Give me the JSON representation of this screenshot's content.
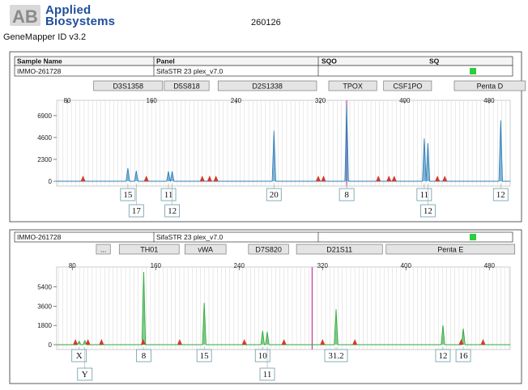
{
  "header": {
    "brand_line1": "Applied",
    "brand_line2": "Biosystems",
    "product": "GeneMapper ID v3.2",
    "run_id": "260126"
  },
  "table": {
    "col_sample": "Sample Name",
    "col_panel": "Panel",
    "col_sqo": "SQO",
    "col_sq": "SQ",
    "sample_name": "IMMO-261728",
    "panel": "SifaSTR 23 plex_v7.0",
    "quality_color": "#2ecc40"
  },
  "panel2": {
    "sample_name": "IMMO-261728",
    "panel": "SifaSTR 23 plex_v7.0",
    "quality_color": "#2ecc40"
  },
  "colors": {
    "blue_trace": "#2d7fb8",
    "green_trace": "#2eaa3a",
    "pink_line": "#d63fa6",
    "peak_marker": "#d8382a",
    "marker_box": "#e4e4e4",
    "gridline": "#c4c4c4"
  },
  "chart_data": [
    {
      "type": "line",
      "series": [
        {
          "color": "#2d7fb8"
        }
      ],
      "x_ticks": [
        80,
        160,
        240,
        320,
        400,
        480
      ],
      "y_ticks": [
        0,
        2300,
        4600,
        6900
      ],
      "xlim": [
        70,
        500
      ],
      "ylim": [
        0,
        8000
      ],
      "markers": [
        {
          "label": "D3S1358",
          "x0": 105,
          "x1": 172
        },
        {
          "label": "D5S818",
          "x0": 172,
          "x1": 216
        },
        {
          "label": "D2S1338",
          "x0": 223,
          "x1": 318
        },
        {
          "label": "TPOX",
          "x0": 328,
          "x1": 375
        },
        {
          "label": "CSF1PO",
          "x0": 380,
          "x1": 427
        },
        {
          "label": "Penta D",
          "x0": 447,
          "x1": 516
        }
      ],
      "peaks": [
        {
          "x": 137.5,
          "height": 1380
        },
        {
          "x": 145.5,
          "height": 1100
        },
        {
          "x": 176.0,
          "height": 1050
        },
        {
          "x": 179.5,
          "height": 1050
        },
        {
          "x": 276.0,
          "height": 5300
        },
        {
          "x": 345.0,
          "height": 8000
        },
        {
          "x": 418.5,
          "height": 4500
        },
        {
          "x": 422.0,
          "height": 4000
        },
        {
          "x": 491.0,
          "height": 6400
        }
      ],
      "red_markers_x": [
        95,
        155,
        208,
        215,
        221,
        318,
        323,
        375,
        385,
        390,
        431,
        438
      ],
      "pink_line_x": 345,
      "alleles": [
        {
          "label": "15",
          "x": 137.5,
          "row": 1
        },
        {
          "label": "17",
          "x": 145.5,
          "row": 2
        },
        {
          "label": "11",
          "x": 176.0,
          "row": 1
        },
        {
          "label": "12",
          "x": 179.5,
          "row": 2
        },
        {
          "label": "20",
          "x": 276.0,
          "row": 1
        },
        {
          "label": "8",
          "x": 345.0,
          "row": 1
        },
        {
          "label": "11",
          "x": 418.5,
          "row": 1
        },
        {
          "label": "12",
          "x": 422.0,
          "row": 2
        },
        {
          "label": "12",
          "x": 491.0,
          "row": 1
        }
      ]
    },
    {
      "type": "line",
      "series": [
        {
          "color": "#2eaa3a"
        }
      ],
      "x_ticks": [
        80,
        160,
        240,
        320,
        400,
        480
      ],
      "y_ticks": [
        0,
        1800,
        3600,
        5400
      ],
      "xlim": [
        65,
        500
      ],
      "ylim": [
        0,
        6800
      ],
      "markers": [
        {
          "label": "...",
          "x0": 103,
          "x1": 118
        },
        {
          "label": "TH01",
          "x0": 125,
          "x1": 184
        },
        {
          "label": "vWA",
          "x0": 188,
          "x1": 229
        },
        {
          "label": "D7S820",
          "x0": 249,
          "x1": 289
        },
        {
          "label": "D21S11",
          "x0": 295,
          "x1": 379
        },
        {
          "label": "Penta E",
          "x0": 381,
          "x1": 506
        }
      ],
      "peaks": [
        {
          "x": 86.5,
          "height": 320
        },
        {
          "x": 92.0,
          "height": 380
        },
        {
          "x": 148.5,
          "height": 6800
        },
        {
          "x": 206.5,
          "height": 3900
        },
        {
          "x": 262.5,
          "height": 1300
        },
        {
          "x": 267.0,
          "height": 1200
        },
        {
          "x": 333.0,
          "height": 3300
        },
        {
          "x": 435.5,
          "height": 1800
        },
        {
          "x": 455.0,
          "height": 1500
        }
      ],
      "red_markers_x": [
        83,
        95,
        108,
        148,
        183,
        245,
        283,
        320,
        351,
        453,
        474
      ],
      "pink_line_x": 310,
      "alleles": [
        {
          "label": "X",
          "x": 86.5,
          "row": 1
        },
        {
          "label": "Y",
          "x": 92.0,
          "row": 2
        },
        {
          "label": "8",
          "x": 148.5,
          "row": 1
        },
        {
          "label": "15",
          "x": 206.5,
          "row": 1
        },
        {
          "label": "10",
          "x": 262.5,
          "row": 1
        },
        {
          "label": "11",
          "x": 267.0,
          "row": 2
        },
        {
          "label": "31.2",
          "x": 333.0,
          "row": 1
        },
        {
          "label": "12",
          "x": 435.5,
          "row": 1
        },
        {
          "label": "16",
          "x": 455.0,
          "row": 1
        }
      ]
    }
  ]
}
